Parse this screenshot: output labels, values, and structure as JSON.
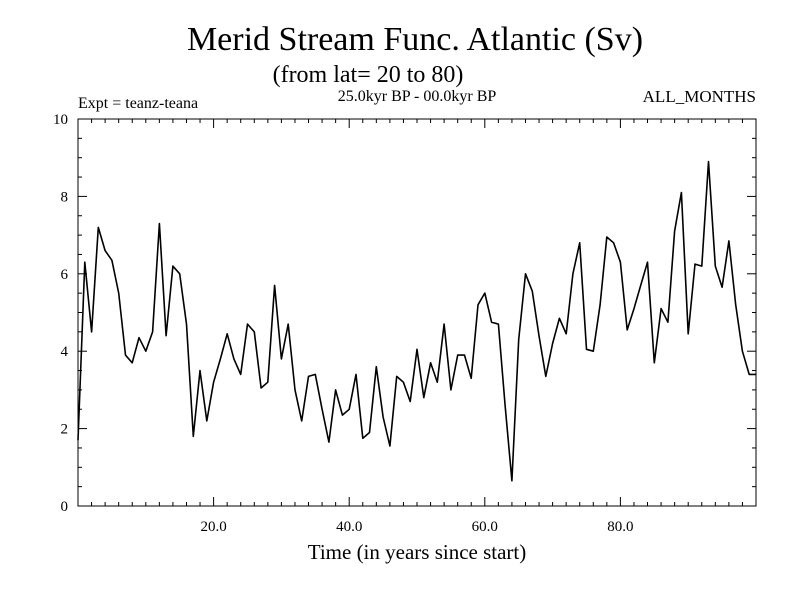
{
  "chart_data": {
    "type": "line",
    "title": "Merid Stream Func. Atlantic (Sv)",
    "subtitle": "(from lat= 20 to 80)",
    "left_annotation": "Expt = teanz-teana",
    "center_annotation": "25.0kyr BP - 00.0kyr BP",
    "right_annotation": "ALL_MONTHS",
    "xlabel": "Time (in years since start)",
    "ylabel": "",
    "xlim": [
      0,
      100
    ],
    "ylim": [
      0,
      10
    ],
    "x_ticks": [
      20,
      40,
      60,
      80
    ],
    "x_tick_labels": [
      "20.0",
      "40.0",
      "60.0",
      "80.0"
    ],
    "y_ticks": [
      0,
      2,
      4,
      6,
      8,
      10
    ],
    "y_tick_labels": [
      "0",
      "2",
      "4",
      "6",
      "8",
      "10"
    ],
    "series": [
      {
        "name": "teanz-teana",
        "color": "#000000",
        "x": [
          0,
          1,
          2,
          3,
          4,
          5,
          6,
          7,
          8,
          9,
          10,
          11,
          12,
          13,
          14,
          15,
          16,
          17,
          18,
          19,
          20,
          21,
          22,
          23,
          24,
          25,
          26,
          27,
          28,
          29,
          30,
          31,
          32,
          33,
          34,
          35,
          36,
          37,
          38,
          39,
          40,
          41,
          42,
          43,
          44,
          45,
          46,
          47,
          48,
          49,
          50,
          51,
          52,
          53,
          54,
          55,
          56,
          57,
          58,
          59,
          60,
          61,
          62,
          63,
          64,
          65,
          66,
          67,
          68,
          69,
          70,
          71,
          72,
          73,
          74,
          75,
          76,
          77,
          78,
          79,
          80,
          81,
          82,
          83,
          84,
          85,
          86,
          87,
          88,
          89,
          90,
          91,
          92,
          93,
          94,
          95,
          96,
          97,
          98,
          99,
          100
        ],
        "values": [
          1.7,
          6.3,
          4.5,
          7.2,
          6.6,
          6.35,
          5.5,
          3.9,
          3.7,
          4.35,
          4.0,
          4.5,
          7.3,
          4.4,
          6.2,
          6.0,
          4.7,
          1.8,
          3.5,
          2.2,
          3.2,
          3.8,
          4.45,
          3.8,
          3.4,
          4.7,
          4.5,
          3.05,
          3.2,
          5.7,
          3.8,
          4.7,
          3.0,
          2.2,
          3.35,
          3.4,
          2.5,
          1.65,
          3.0,
          2.35,
          2.5,
          3.4,
          1.75,
          1.9,
          3.6,
          2.3,
          1.55,
          3.35,
          3.2,
          2.7,
          4.05,
          2.8,
          3.7,
          3.2,
          4.7,
          3.0,
          3.9,
          3.9,
          3.3,
          5.2,
          5.5,
          4.75,
          4.7,
          2.6,
          0.65,
          4.3,
          6.0,
          5.55,
          4.4,
          3.35,
          4.2,
          4.85,
          4.45,
          6.0,
          6.8,
          4.05,
          4.0,
          5.2,
          6.95,
          6.8,
          6.3,
          4.55,
          5.1,
          5.7,
          6.3,
          3.7,
          5.1,
          4.75,
          7.1,
          8.1,
          4.45,
          6.25,
          6.2,
          8.9,
          6.2,
          5.65,
          6.85,
          5.2,
          4.0,
          3.4,
          3.4
        ]
      }
    ]
  }
}
